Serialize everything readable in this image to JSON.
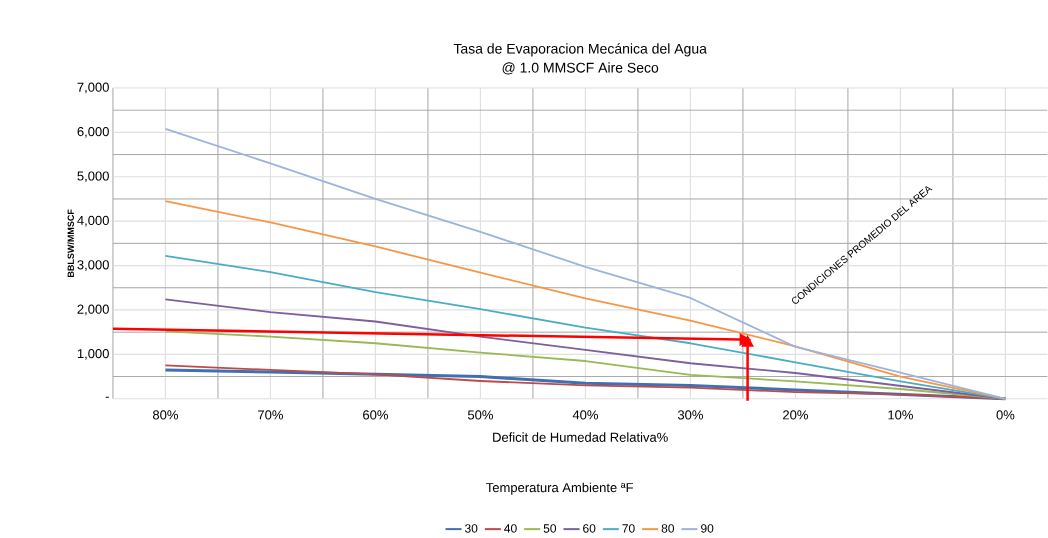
{
  "chart_data": {
    "type": "line",
    "title": "Tasa de Evaporacion Mecánica del Agua\n@ 1.0 MMSCF Aire Seco",
    "xlabel": "Deficit de Humedad Relativa%",
    "ylabel": "BBLSW/MMSCF",
    "legend_title": "Temperatura Ambiente ªF",
    "categories": [
      "80%",
      "70%",
      "60%",
      "50%",
      "40%",
      "30%",
      "20%",
      "10%",
      "0%"
    ],
    "series": [
      {
        "name": "30",
        "color": "#3f6fb5",
        "values": [
          650,
          600,
          550,
          500,
          350,
          300,
          200,
          100,
          0
        ]
      },
      {
        "name": "40",
        "color": "#be4b48",
        "values": [
          750,
          650,
          550,
          400,
          300,
          250,
          150,
          100,
          0
        ]
      },
      {
        "name": "50",
        "color": "#98b954",
        "values": [
          1520,
          1400,
          1250,
          1040,
          850,
          540,
          390,
          220,
          0
        ]
      },
      {
        "name": "60",
        "color": "#7d5fa0",
        "values": [
          2240,
          1950,
          1740,
          1400,
          1100,
          800,
          580,
          290,
          0
        ]
      },
      {
        "name": "70",
        "color": "#4aacc5",
        "values": [
          3220,
          2850,
          2400,
          2020,
          1600,
          1250,
          820,
          390,
          0
        ]
      },
      {
        "name": "80",
        "color": "#f79646",
        "values": [
          4450,
          3970,
          3430,
          2840,
          2260,
          1760,
          1180,
          500,
          0
        ]
      },
      {
        "name": "90",
        "color": "#9db3dc",
        "values": [
          6080,
          5300,
          4500,
          3760,
          2970,
          2270,
          1170,
          590,
          0
        ]
      }
    ],
    "ylim": [
      0,
      7000
    ],
    "yticks": [
      {
        "value": 0,
        "label": "-"
      },
      {
        "value": 1000,
        "label": "1,000"
      },
      {
        "value": 2000,
        "label": "2,000"
      },
      {
        "value": 3000,
        "label": "3,000"
      },
      {
        "value": 4000,
        "label": "4,000"
      },
      {
        "value": 5000,
        "label": "5,000"
      },
      {
        "value": 6000,
        "label": "6,000"
      },
      {
        "value": 7000,
        "label": "7,000"
      }
    ],
    "grid": true,
    "legend": "bottom",
    "annotations": [
      "CONDICIONES PROMEDIO DEL AREA"
    ]
  }
}
